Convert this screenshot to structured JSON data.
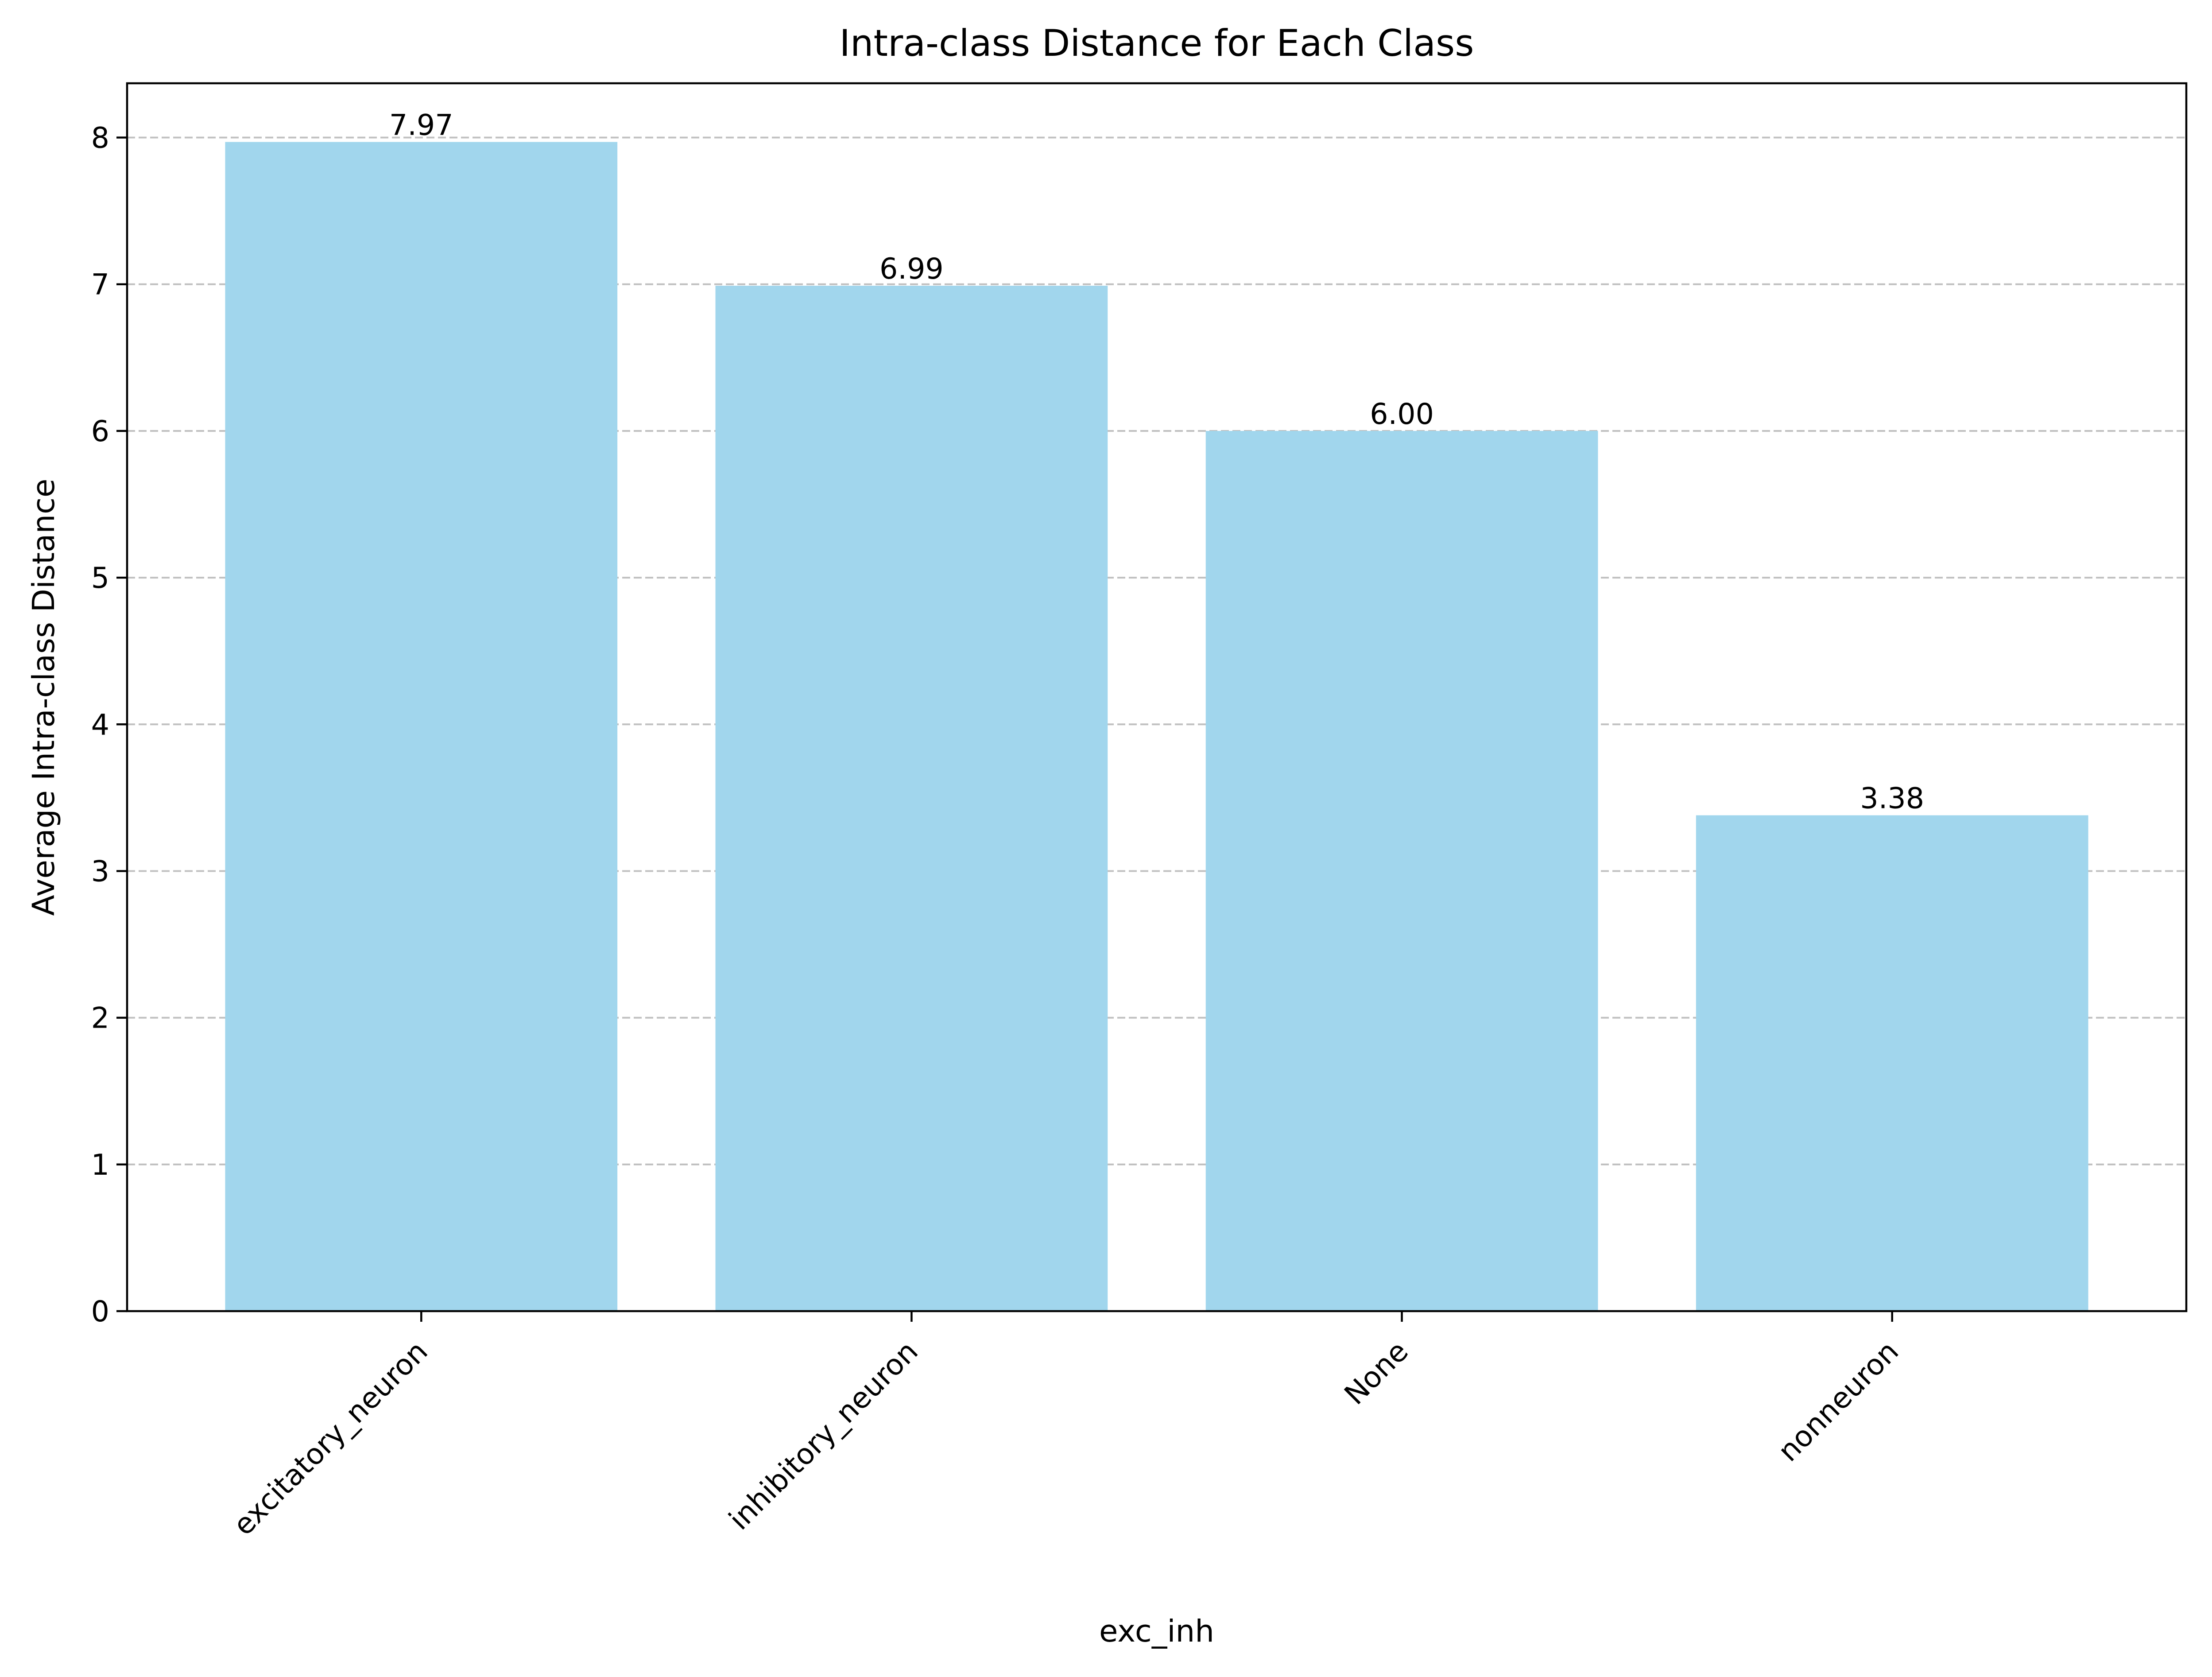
{
  "chart_data": {
    "type": "bar",
    "title": "Intra-class Distance for Each Class",
    "xlabel": "exc_inh",
    "ylabel": "Average Intra-class Distance",
    "categories": [
      "excitatory_neuron",
      "inhibitory_neuron",
      "None",
      "nonneuron"
    ],
    "values": [
      7.97,
      6.99,
      6.0,
      3.38
    ],
    "value_labels": [
      "7.97",
      "6.99",
      "6.00",
      "3.38"
    ],
    "yticks": [
      "0",
      "1",
      "2",
      "3",
      "4",
      "5",
      "6",
      "7",
      "8"
    ],
    "ylim": [
      0,
      8.37
    ],
    "grid": "y-dashed",
    "bar_color": "#a1d6ed",
    "legend": "none"
  }
}
